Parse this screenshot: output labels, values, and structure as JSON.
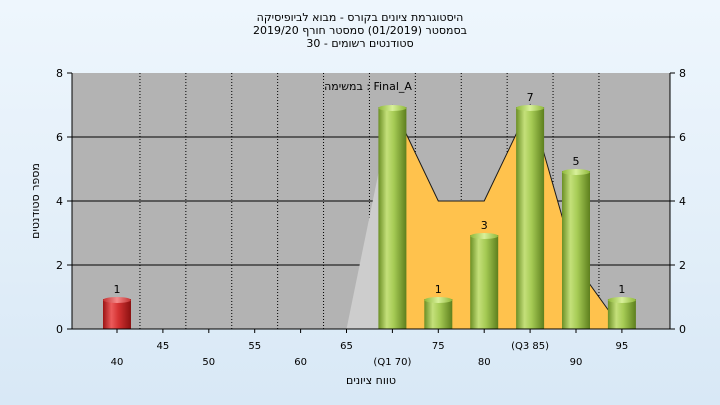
{
  "chart_data": {
    "type": "bar",
    "title_lines": [
      "היסטוגרמת ציונים בקורס - מבוא לביופיסיקה",
      "בסמסטר  (01/2019)  סמסטר חורף  2019/20",
      "סטודנטים רשומים - 30"
    ],
    "task_label": "במשימה : Final_A",
    "xlabel": "טווח ציונים",
    "ylabel": "מספר סטודנטים",
    "ylim": [
      0,
      8
    ],
    "y_ticks": [
      "0",
      "2",
      "4",
      "6",
      "8"
    ],
    "x_ticks": [
      "40",
      "45",
      "50",
      "55",
      "60",
      "65",
      "(Q1 70)",
      "75",
      "80",
      "(Q3 85)",
      "90",
      "95"
    ],
    "series": [
      {
        "values": [
          1,
          0,
          0,
          0,
          0,
          0,
          7,
          1,
          3,
          7,
          5,
          1
        ]
      }
    ],
    "data_labels": [
      "1",
      "",
      "",
      "",
      "",
      "",
      "",
      "1",
      "3",
      "7",
      "5",
      "1"
    ],
    "distribution_curve": [
      0,
      0,
      0,
      0,
      0,
      0,
      7,
      4,
      4,
      7,
      2,
      0
    ],
    "grid": true,
    "legend": "none",
    "colors": {
      "plot_background": "#b3b3b3",
      "bar_red": "#cc2a2a",
      "bar_green": "#9cc24a",
      "area_gray": "#cdcdcd",
      "area_orange": "#ffc24d",
      "curve_line": "#1a1a1a"
    }
  }
}
